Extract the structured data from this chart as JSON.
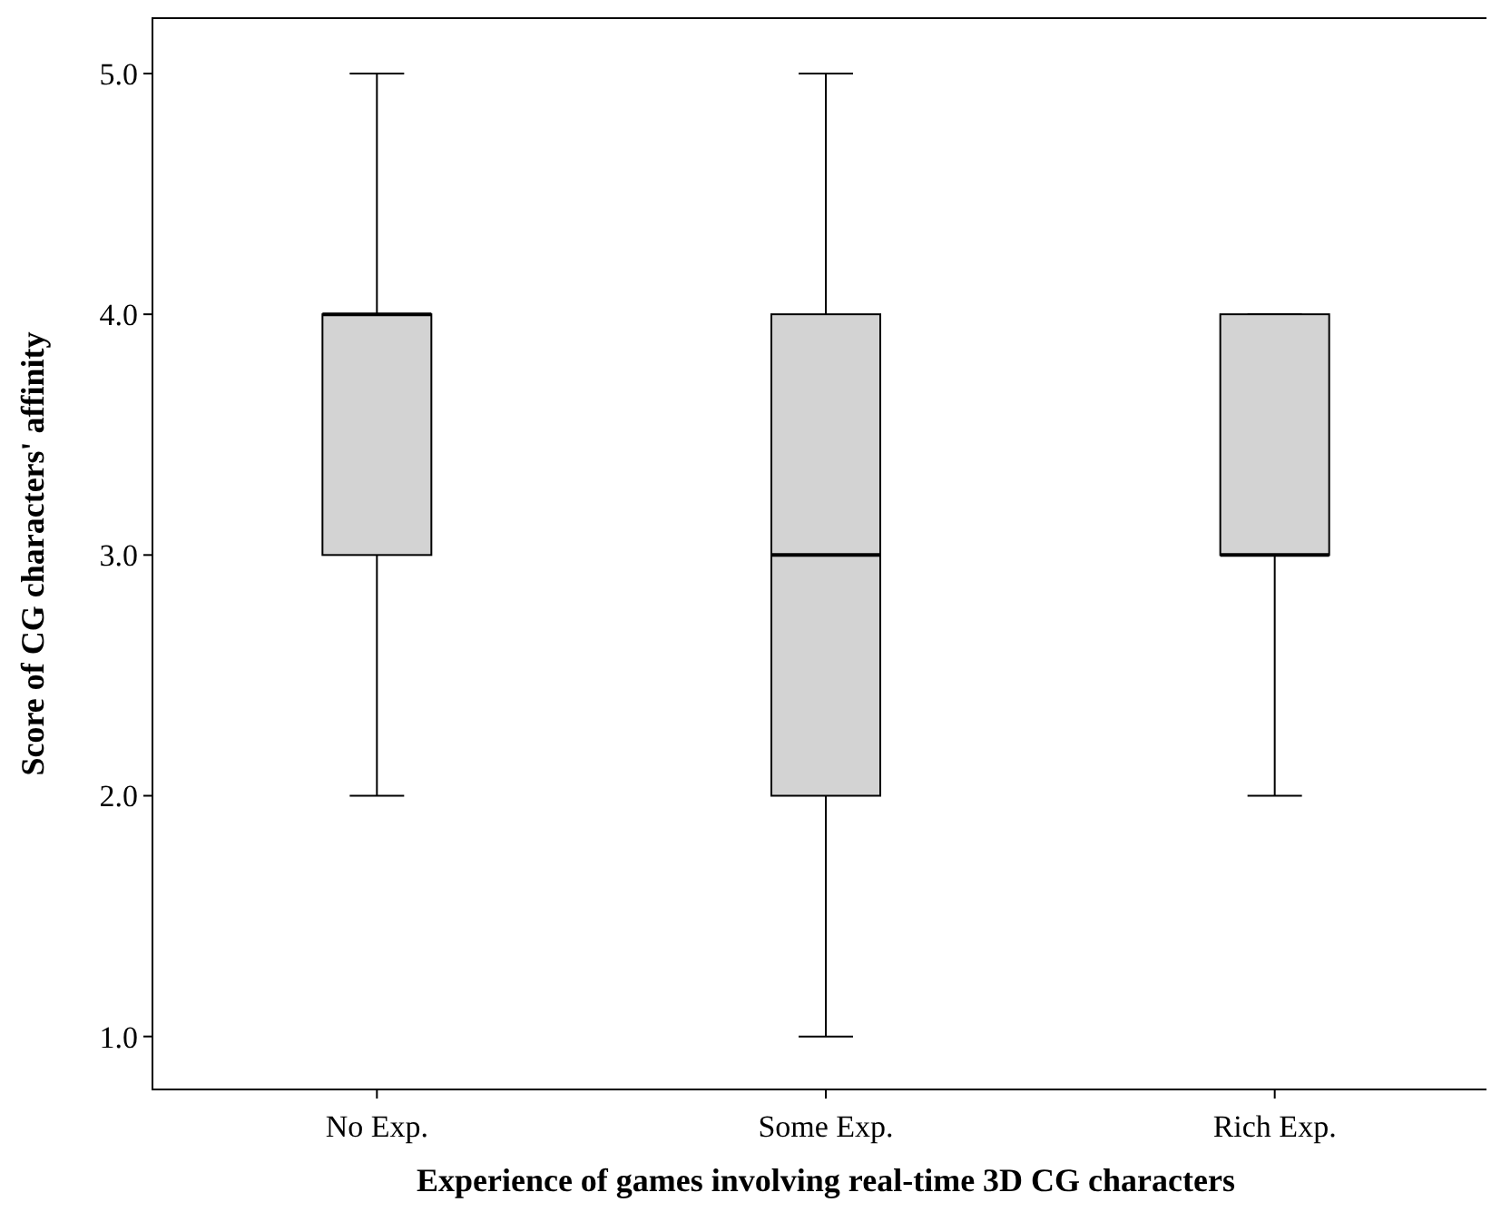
{
  "chart_data": {
    "type": "box",
    "xlabel": "Experience of games involving real-time 3D CG characters",
    "ylabel": "Score of CG characters' affinity",
    "categories": [
      "No Exp.",
      "Some Exp.",
      "Rich Exp."
    ],
    "boxes": [
      {
        "low": 2,
        "q1": 3,
        "median": 4,
        "q3": 4,
        "high": 5
      },
      {
        "low": 1,
        "q1": 2,
        "median": 3,
        "q3": 4,
        "high": 5
      },
      {
        "low": 2,
        "q1": 3,
        "median": 3,
        "q3": 4,
        "high": 4
      }
    ],
    "color": "#d3d3d3",
    "ylim": [
      0.78,
      5.23
    ],
    "yticks": [
      {
        "value": 1,
        "label": "1.0"
      },
      {
        "value": 2,
        "label": "2.0"
      },
      {
        "value": 3,
        "label": "3.0"
      },
      {
        "value": 4,
        "label": "4.0"
      },
      {
        "value": 5,
        "label": "5.0"
      }
    ]
  }
}
